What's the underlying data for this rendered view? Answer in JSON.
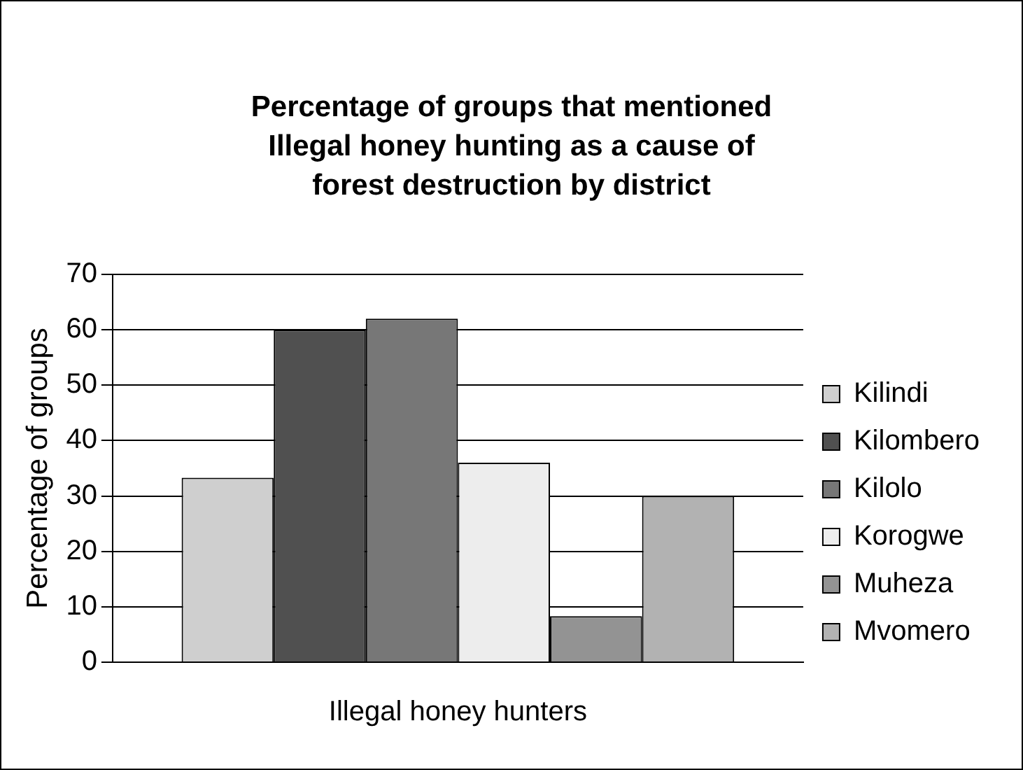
{
  "chart_data": {
    "type": "bar",
    "title": "Percentage of groups that mentioned Illegal honey hunting as a cause of forest destruction by district",
    "ylabel": "Percentage of groups",
    "categories": [
      "Illegal honey hunters"
    ],
    "series": [
      {
        "name": "Kilindi",
        "color": "#cfcfcf",
        "values": [
          33.3
        ]
      },
      {
        "name": "Kilombero",
        "color": "#505050",
        "values": [
          60
        ]
      },
      {
        "name": "Kilolo",
        "color": "#777777",
        "values": [
          62
        ]
      },
      {
        "name": "Korogwe",
        "color": "#ededed",
        "values": [
          36
        ]
      },
      {
        "name": "Muheza",
        "color": "#939393",
        "values": [
          8.3
        ]
      },
      {
        "name": "Mvomero",
        "color": "#b2b2b2",
        "values": [
          30
        ]
      }
    ],
    "ylim": [
      0,
      70
    ],
    "yticks": [
      0,
      10,
      20,
      30,
      40,
      50,
      60,
      70
    ],
    "grid": "y",
    "legend": "right"
  }
}
